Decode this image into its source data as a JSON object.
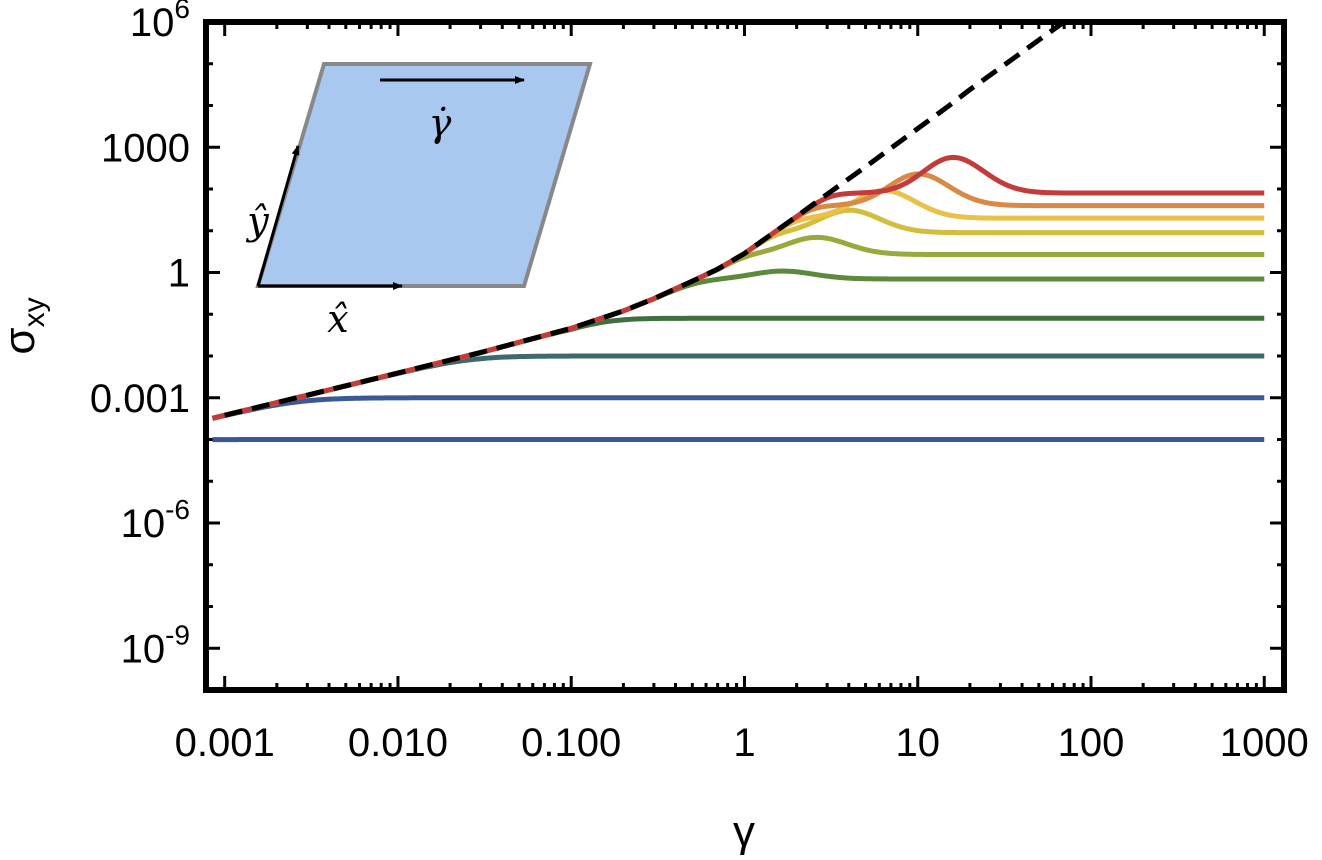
{
  "chart_data": {
    "type": "line",
    "xlabel": "γ",
    "ylabel": "σ",
    "ylabel_subscript": "xy",
    "x_scale": "log",
    "y_scale": "log",
    "xlim": [
      0.00078,
      1300
    ],
    "ylim": [
      1e-10,
      1000000
    ],
    "x_ticks": [
      0.001,
      0.01,
      0.1,
      1,
      10,
      100,
      1000
    ],
    "x_tick_labels": [
      "0.001",
      "0.010",
      "0.100",
      "1",
      "10",
      "100",
      "1000"
    ],
    "y_ticks": [
      1e-09,
      1e-06,
      0.001,
      1,
      1000,
      1000000
    ],
    "y_tick_labels": [
      {
        "base": "10",
        "exp": "-9"
      },
      {
        "base": "10",
        "exp": "-6"
      },
      {
        "base": "0.001",
        "exp": ""
      },
      {
        "base": "1",
        "exp": ""
      },
      {
        "base": "1000",
        "exp": ""
      },
      {
        "base": "10",
        "exp": "6"
      }
    ],
    "grid": false,
    "envelope": {
      "style": "dashed",
      "color": "#000000",
      "points": [
        [
          0.001,
          0.00038
        ],
        [
          0.003,
          0.00115
        ],
        [
          0.01,
          0.0039
        ],
        [
          0.03,
          0.0121
        ],
        [
          0.1,
          0.046
        ],
        [
          0.2,
          0.12
        ],
        [
          0.3,
          0.236
        ],
        [
          0.5,
          0.62
        ],
        [
          0.7,
          1.2
        ],
        [
          1,
          2.85
        ],
        [
          2,
          22
        ],
        [
          3,
          75
        ],
        [
          5,
          340
        ],
        [
          7,
          950
        ],
        [
          10,
          2800
        ],
        [
          15,
          9600
        ],
        [
          20,
          24000
        ],
        [
          30,
          80000
        ],
        [
          50,
          370000
        ],
        [
          80,
          1500000
        ]
      ]
    },
    "series": [
      {
        "color": "#3b5694",
        "plateau": 0.0001,
        "peak": 0,
        "peak_x": 1
      },
      {
        "color": "#3a5996",
        "plateau": 0.001,
        "peak": 0,
        "peak_x": 1
      },
      {
        "color": "#3e6a6a",
        "plateau": 0.01,
        "peak": 0,
        "peak_x": 1
      },
      {
        "color": "#41703f",
        "plateau": 0.08,
        "peak": 0,
        "peak_x": 1
      },
      {
        "color": "#5c8a3a",
        "plateau": 0.7,
        "peak": 0.3,
        "peak_x": 1.4
      },
      {
        "color": "#9aa83c",
        "plateau": 2.7,
        "peak": 0.65,
        "peak_x": 2.2
      },
      {
        "color": "#d4bd3c",
        "plateau": 9,
        "peak": 0.85,
        "peak_x": 3.4
      },
      {
        "color": "#e9c04a",
        "plateau": 20,
        "peak": 1.05,
        "peak_x": 5.4
      },
      {
        "color": "#d88a45",
        "plateau": 40,
        "peak": 1.2,
        "peak_x": 8.5
      },
      {
        "color": "#c43b3b",
        "plateau": 80,
        "peak": 1.35,
        "peak_x": 13.5
      }
    ],
    "inset": {
      "x_hat_label": "x̂",
      "y_hat_label": "ŷ",
      "shear_rate_label": "γ̇",
      "fill_color": "#a9c8f0",
      "edge_color": "#888888"
    }
  }
}
